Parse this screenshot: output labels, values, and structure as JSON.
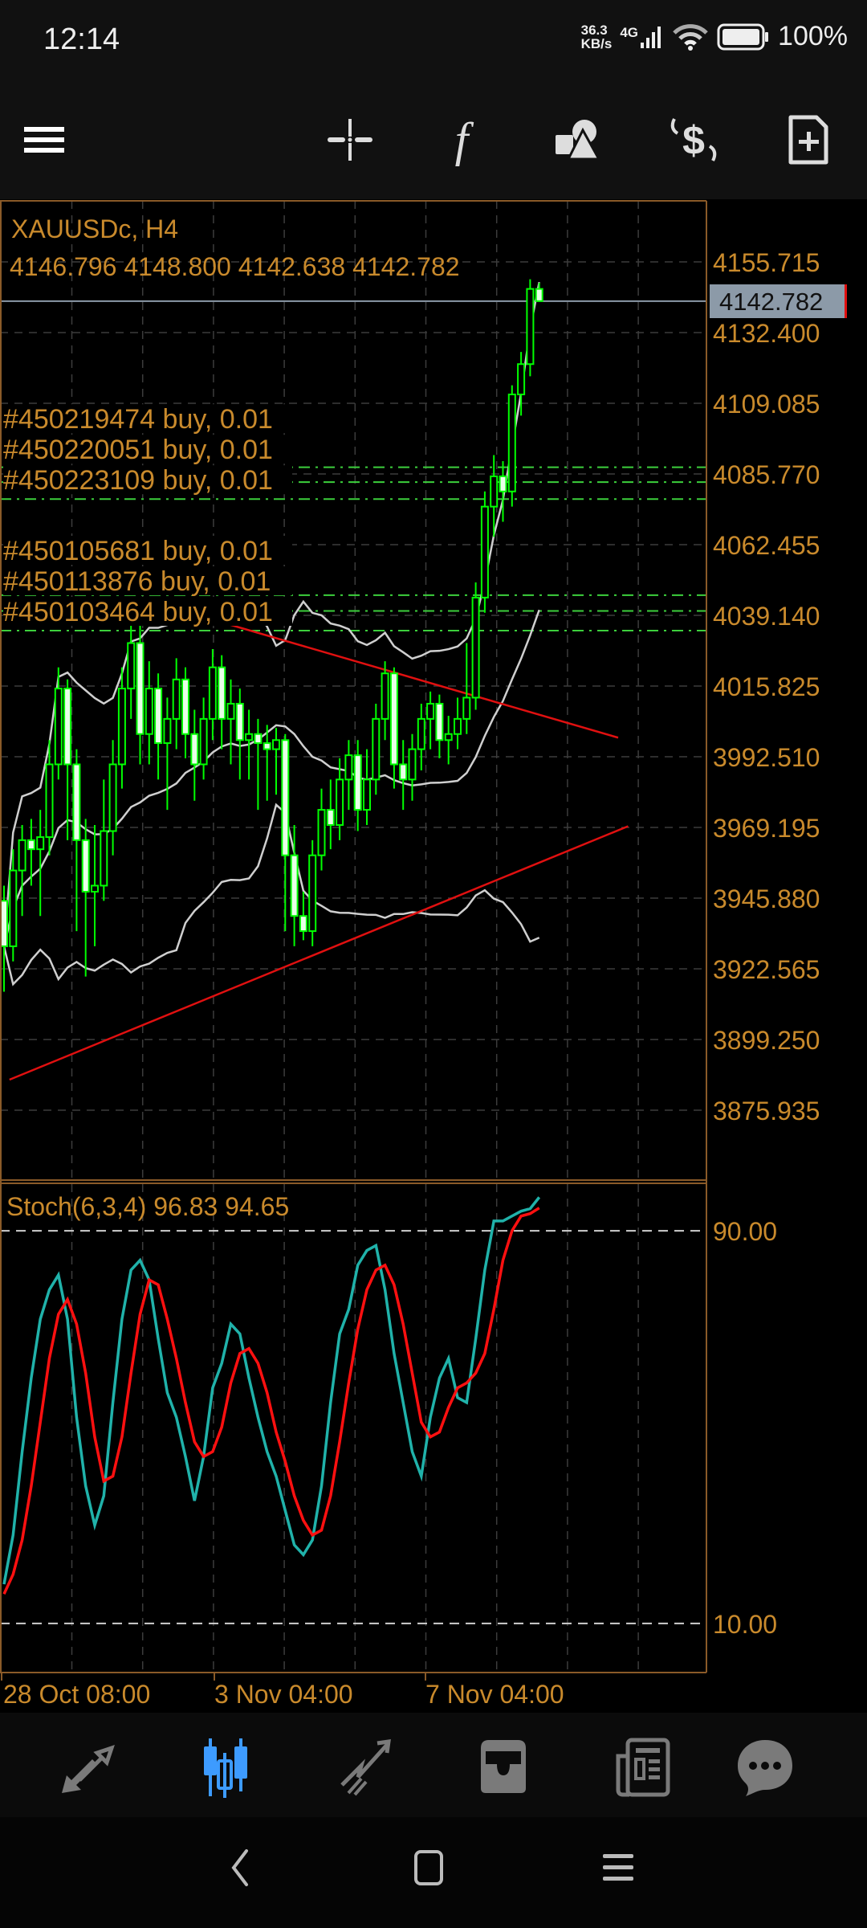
{
  "status_bar": {
    "time": "12:14",
    "net_speed_value": "36.3",
    "net_speed_unit": "KB/s",
    "network": "4G",
    "battery": "100%"
  },
  "toolbar": {
    "icons": [
      "menu-icon",
      "crosshair-icon",
      "indicators-icon",
      "objects-icon",
      "trade-icon",
      "new-order-icon"
    ]
  },
  "chart": {
    "symbol_label": "XAUUSDc, H4",
    "ohlc_label": "4146.796 4148.800 4142.638 4142.782",
    "current_price": "4142.782",
    "price_ticks": [
      "4155.715",
      "4132.400",
      "4109.085",
      "4085.770",
      "4062.455",
      "4039.140",
      "4015.825",
      "3992.510",
      "3969.195",
      "3945.880",
      "3922.565",
      "3899.250",
      "3875.935"
    ],
    "orders": [
      {
        "label": "#450219474 buy, 0.01",
        "price": 4088.0
      },
      {
        "label": "#450220051 buy, 0.01",
        "price": 4083.1
      },
      {
        "label": "#450223109 buy, 0.01",
        "price": 4077.5
      },
      {
        "label": "#450105681 buy, 0.01",
        "price": 4045.8
      },
      {
        "label": "#450113876 buy, 0.01",
        "price": 4040.6
      },
      {
        "label": "#450103464 buy, 0.01",
        "price": 4034.1
      }
    ],
    "stoch_label": "Stoch(6,3,4) 96.83 94.65",
    "stoch_levels": [
      "90.00",
      "10.00"
    ],
    "time_labels": [
      "28 Oct 08:00",
      "3 Nov 04:00",
      "7 Nov 04:00"
    ],
    "colors": {
      "candle": "#00ff00",
      "bear_fill": "#e8ffe8",
      "bands": "#cfcfcf",
      "trendline": "#e01010",
      "stoch_main": "#20b2aa",
      "stoch_signal": "#ff1010",
      "order_line": "#3ccf3c",
      "axis_text": "#c98a2c"
    }
  },
  "chart_data": {
    "type": "candlestick",
    "symbol": "XAUUSDc",
    "timeframe": "H4",
    "ylim": [
      3860,
      4170
    ],
    "candles": [
      [
        3945,
        3950,
        3915,
        3930
      ],
      [
        3930,
        3962,
        3925,
        3955
      ],
      [
        3955,
        3970,
        3940,
        3965
      ],
      [
        3965,
        3972,
        3950,
        3962
      ],
      [
        3962,
        3975,
        3940,
        3966
      ],
      [
        3966,
        3998,
        3960,
        3990
      ],
      [
        3990,
        4022,
        3985,
        4015
      ],
      [
        4015,
        4018,
        3965,
        3990
      ],
      [
        3990,
        3995,
        3935,
        3965
      ],
      [
        3965,
        3972,
        3920,
        3948
      ],
      [
        3948,
        3970,
        3930,
        3950
      ],
      [
        3950,
        3985,
        3945,
        3968
      ],
      [
        3968,
        3998,
        3960,
        3990
      ],
      [
        3990,
        4022,
        3982,
        4015
      ],
      [
        4015,
        4040,
        4005,
        4030
      ],
      [
        4030,
        4036,
        3990,
        4000
      ],
      [
        4000,
        4024,
        3990,
        4015
      ],
      [
        4015,
        4020,
        3985,
        3997
      ],
      [
        3997,
        4012,
        3975,
        4005
      ],
      [
        4005,
        4025,
        3995,
        4018
      ],
      [
        4018,
        4022,
        3992,
        4000
      ],
      [
        4000,
        4008,
        3978,
        3990
      ],
      [
        3990,
        4012,
        3985,
        4005
      ],
      [
        4005,
        4028,
        3998,
        4022
      ],
      [
        4022,
        4026,
        3995,
        4005
      ],
      [
        4005,
        4018,
        3990,
        4010
      ],
      [
        4010,
        4015,
        3985,
        3998
      ],
      [
        3998,
        4008,
        3985,
        4000
      ],
      [
        4000,
        4005,
        3975,
        3997
      ],
      [
        3997,
        4003,
        3978,
        3995
      ],
      [
        3995,
        4002,
        3980,
        3998
      ],
      [
        3998,
        4000,
        3935,
        3960
      ],
      [
        3960,
        3970,
        3930,
        3940
      ],
      [
        3940,
        3948,
        3932,
        3935
      ],
      [
        3935,
        3965,
        3930,
        3960
      ],
      [
        3960,
        3982,
        3955,
        3975
      ],
      [
        3975,
        3985,
        3962,
        3970
      ],
      [
        3970,
        3992,
        3965,
        3985
      ],
      [
        3985,
        3998,
        3975,
        3993
      ],
      [
        3993,
        3998,
        3968,
        3975
      ],
      [
        3975,
        3995,
        3970,
        3985
      ],
      [
        3985,
        4010,
        3980,
        4005
      ],
      [
        4005,
        4024,
        3998,
        4020
      ],
      [
        4020,
        4022,
        3982,
        3990
      ],
      [
        3990,
        3998,
        3975,
        3985
      ],
      [
        3985,
        4000,
        3978,
        3995
      ],
      [
        3995,
        4010,
        3988,
        4005
      ],
      [
        4005,
        4014,
        3995,
        4010
      ],
      [
        4010,
        4013,
        3992,
        3998
      ],
      [
        3998,
        4006,
        3990,
        4000
      ],
      [
        4000,
        4012,
        3995,
        4005
      ],
      [
        4005,
        4030,
        4000,
        4012
      ],
      [
        4012,
        4050,
        4008,
        4045
      ],
      [
        4045,
        4080,
        4040,
        4075
      ],
      [
        4075,
        4092,
        4065,
        4085
      ],
      [
        4085,
        4090,
        4070,
        4080
      ],
      [
        4080,
        4115,
        4075,
        4112
      ],
      [
        4112,
        4126,
        4105,
        4122
      ],
      [
        4122,
        4150,
        4118,
        4146.8
      ],
      [
        4146.796,
        4148.8,
        4142.638,
        4142.782
      ]
    ],
    "bollinger": {
      "period": 20,
      "deviation": 2
    },
    "trendlines": [
      {
        "from": [
          15.1,
          4044.6
        ],
        "to": [
          67.7,
          3998.8
        ]
      },
      {
        "from": [
          0.6,
          3886.0
        ],
        "to": [
          68.8,
          3969.6
        ]
      }
    ],
    "stochastic": {
      "params": [
        6,
        3,
        4
      ],
      "ylim": [
        0,
        100
      ],
      "levels": [
        90,
        10
      ],
      "main": [
        18,
        28,
        45,
        60,
        72,
        78,
        81,
        72,
        52,
        38,
        30,
        36,
        55,
        72,
        82,
        84,
        80,
        68,
        57,
        52,
        44,
        35,
        44,
        58,
        63,
        71,
        69,
        60,
        52,
        45,
        40,
        33,
        26,
        24,
        27,
        38,
        55,
        69,
        74,
        83,
        86,
        87,
        78,
        65,
        55,
        45,
        40,
        52,
        60,
        64,
        56,
        55,
        68,
        82,
        92,
        92,
        93,
        94,
        94.5,
        96.83
      ],
      "signal": [
        16,
        20,
        27,
        38,
        51,
        64,
        73,
        76,
        71,
        61,
        48,
        39,
        40,
        48,
        61,
        73,
        80,
        79,
        72,
        64,
        55,
        47,
        44,
        45,
        50,
        59,
        65,
        66,
        63,
        57,
        49,
        43,
        36,
        31,
        28,
        29,
        36,
        47,
        59,
        70,
        78,
        82,
        83,
        79,
        71,
        61,
        51,
        48,
        49,
        54,
        58,
        59,
        61,
        65,
        74,
        84,
        90,
        93,
        93.5,
        94.65
      ]
    },
    "time_labels": [
      "28 Oct 08:00",
      "3 Nov 04:00",
      "7 Nov 04:00"
    ],
    "grid": true
  },
  "bottom_nav": {
    "items": [
      "quotes-icon",
      "chart-icon",
      "trade-icon",
      "history-icon",
      "news-icon",
      "messages-icon"
    ],
    "active": "chart-icon",
    "active_color": "#3d9bff",
    "inactive_color": "#7a7a7a"
  },
  "system_nav": {
    "items": [
      "back-icon",
      "home-icon",
      "recents-icon"
    ]
  }
}
